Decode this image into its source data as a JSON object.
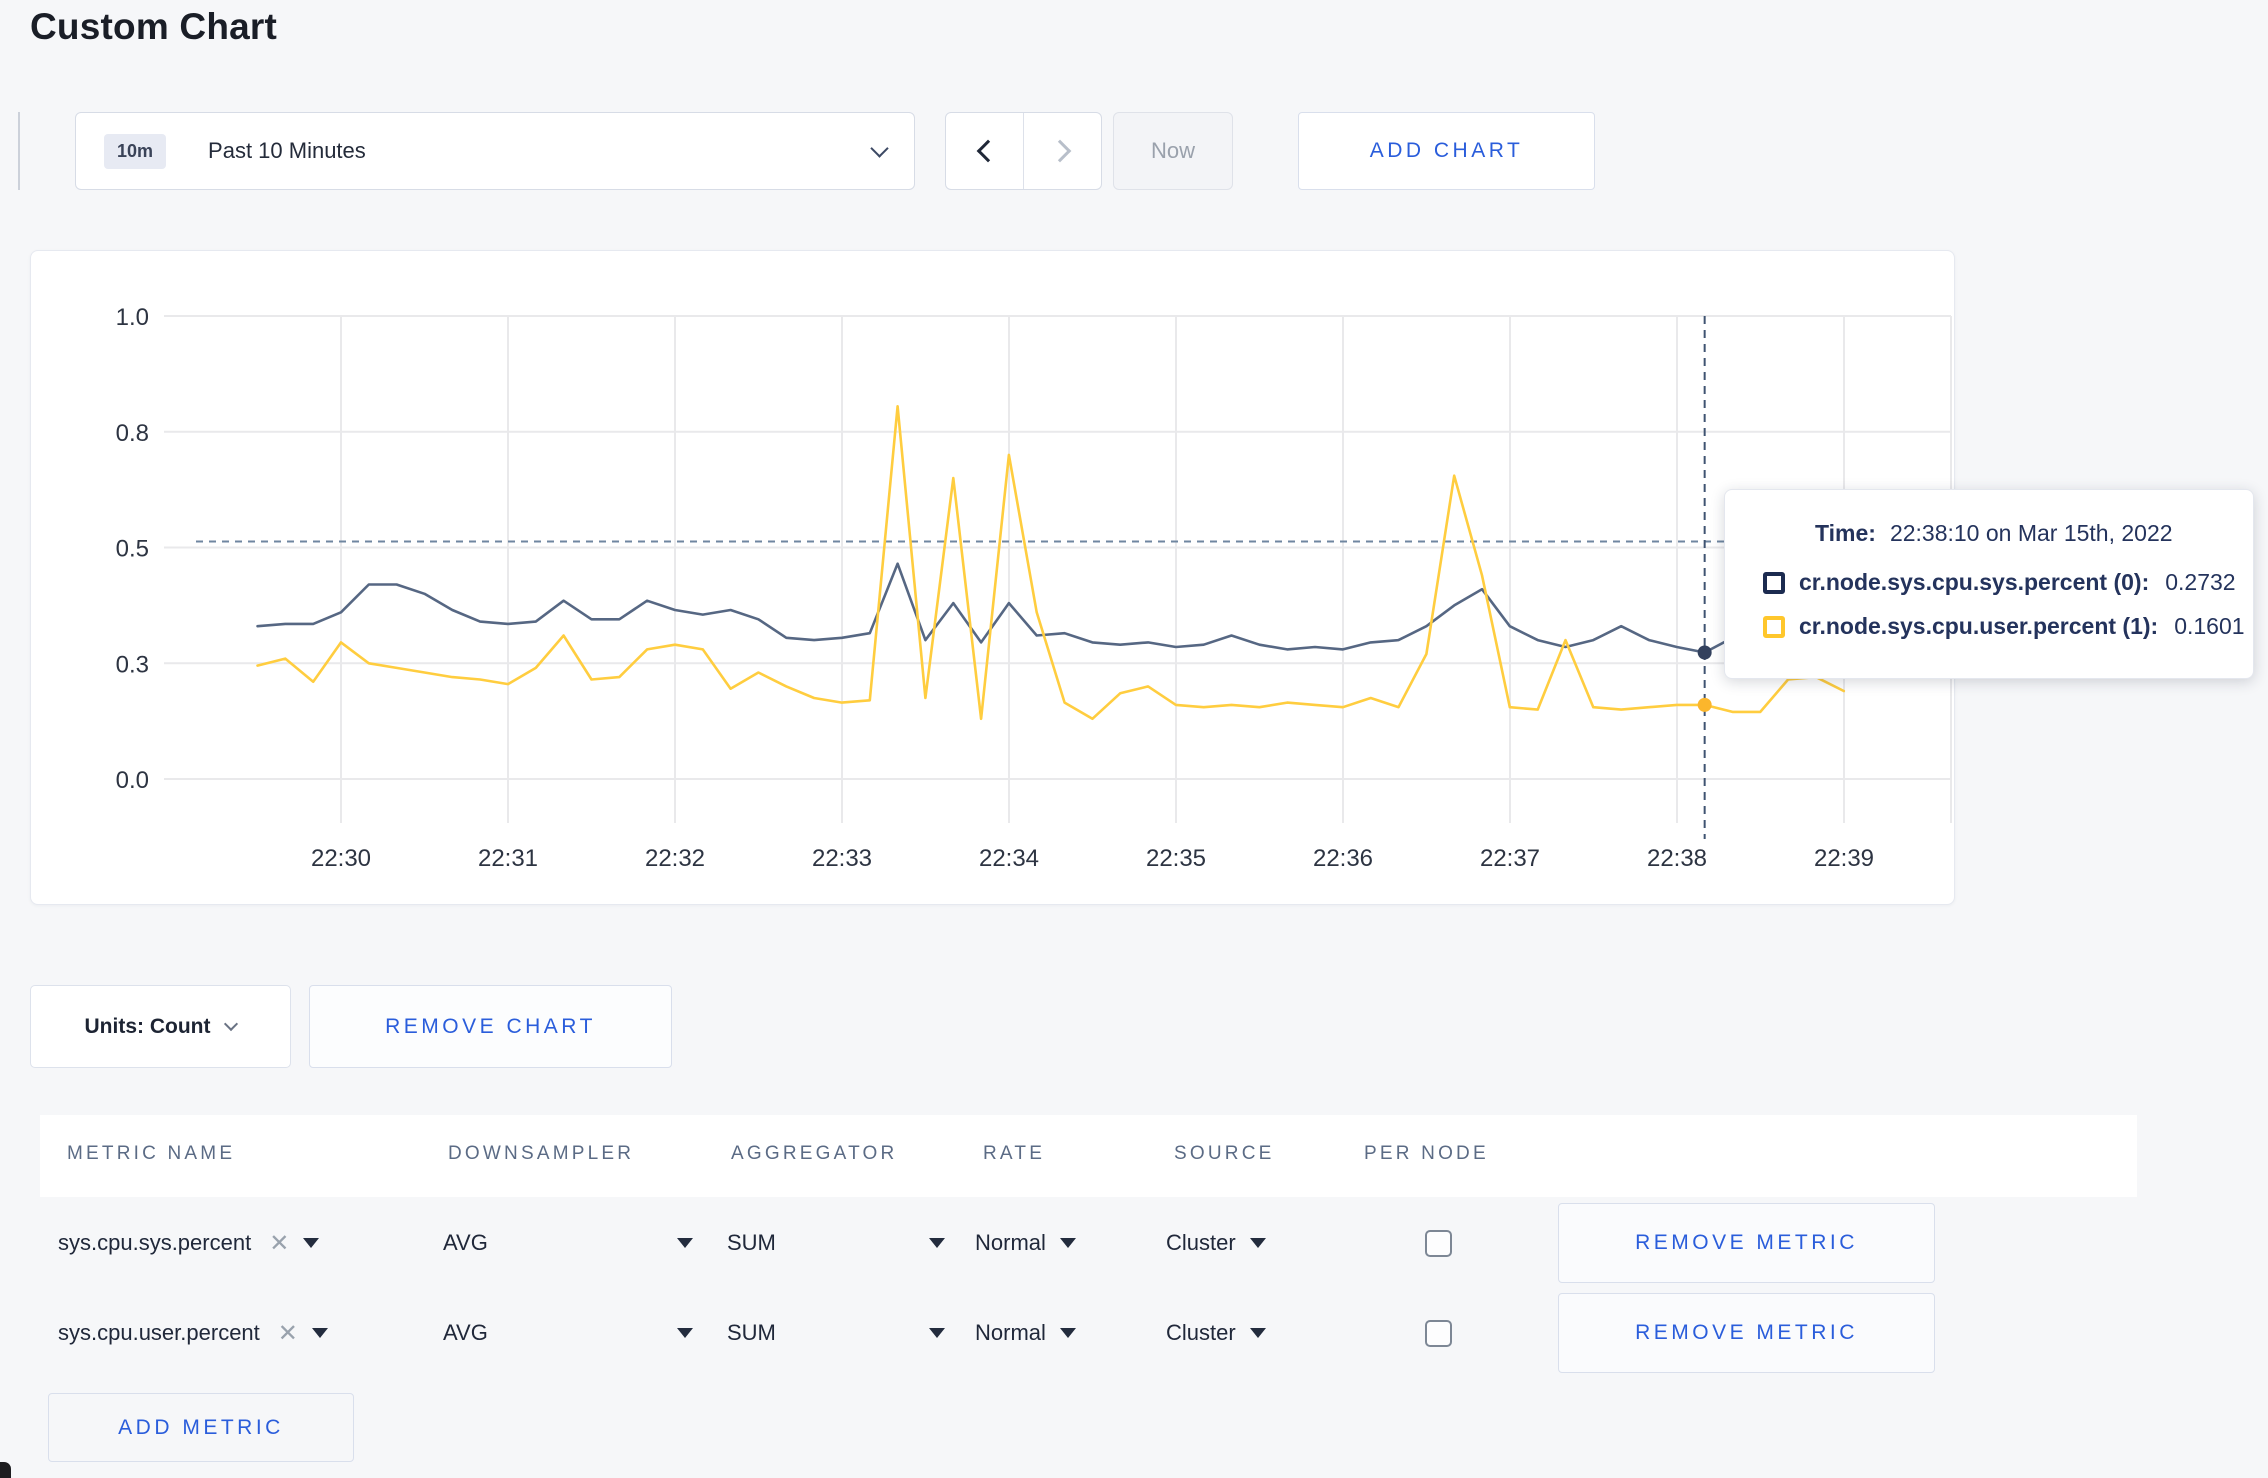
{
  "page": {
    "title": "Custom Chart"
  },
  "toolbar": {
    "time_scale": {
      "badge": "10m",
      "label": "Past 10 Minutes"
    },
    "now_label": "Now",
    "add_chart_label": "ADD CHART"
  },
  "chart_data": {
    "type": "line",
    "title": "",
    "xlabel": "",
    "ylabel": "",
    "ylim": [
      0,
      1
    ],
    "grid": true,
    "legend_position": "none",
    "y_ticks": [
      {
        "label": "1.0",
        "value": 1.0
      },
      {
        "label": "0.8",
        "value": 0.75
      },
      {
        "label": "0.5",
        "value": 0.5
      },
      {
        "label": "0.3",
        "value": 0.25
      },
      {
        "label": "0.0",
        "value": 0.0
      }
    ],
    "x_ticks": [
      "22:30",
      "22:31",
      "22:32",
      "22:33",
      "22:34",
      "22:35",
      "22:36",
      "22:37",
      "22:38",
      "22:39"
    ],
    "x_start": "22:29:30",
    "x_interval_seconds": 10,
    "threshold_line": {
      "value": 0.513,
      "style": "dashed"
    },
    "crosshair": {
      "time": "22:38:10",
      "x_index": 52,
      "sys_value": 0.2732,
      "user_value": 0.1601
    },
    "series": [
      {
        "name": "cr.node.sys.cpu.sys.percent (0)",
        "color": "#566783",
        "dot_color": "#33415e",
        "values": [
          0.33,
          0.335,
          0.335,
          0.36,
          0.42,
          0.42,
          0.4,
          0.365,
          0.34,
          0.335,
          0.34,
          0.385,
          0.345,
          0.345,
          0.385,
          0.365,
          0.355,
          0.365,
          0.345,
          0.305,
          0.3,
          0.305,
          0.315,
          0.465,
          0.3,
          0.38,
          0.295,
          0.38,
          0.31,
          0.315,
          0.295,
          0.29,
          0.295,
          0.285,
          0.29,
          0.31,
          0.29,
          0.28,
          0.285,
          0.28,
          0.295,
          0.3,
          0.33,
          0.375,
          0.41,
          0.33,
          0.3,
          0.285,
          0.3,
          0.33,
          0.3,
          0.285,
          0.2732,
          0.305,
          0.31,
          0.3,
          0.31,
          0.3
        ]
      },
      {
        "name": "cr.node.sys.cpu.user.percent (1)",
        "color": "#ffcd3f",
        "dot_color": "#fbb62c",
        "values": [
          0.245,
          0.26,
          0.21,
          0.295,
          0.25,
          0.24,
          0.23,
          0.22,
          0.215,
          0.205,
          0.24,
          0.31,
          0.215,
          0.22,
          0.28,
          0.29,
          0.28,
          0.195,
          0.23,
          0.2,
          0.175,
          0.165,
          0.17,
          0.805,
          0.175,
          0.65,
          0.13,
          0.7,
          0.36,
          0.165,
          0.13,
          0.185,
          0.2,
          0.16,
          0.155,
          0.16,
          0.155,
          0.165,
          0.16,
          0.155,
          0.175,
          0.155,
          0.27,
          0.655,
          0.44,
          0.155,
          0.15,
          0.3,
          0.155,
          0.15,
          0.155,
          0.16,
          0.1601,
          0.145,
          0.145,
          0.215,
          0.22,
          0.19
        ]
      }
    ]
  },
  "tooltip": {
    "time_label": "Time:",
    "time_value": "22:38:10 on Mar 15th, 2022",
    "rows": [
      {
        "name": "cr.node.sys.cpu.sys.percent (0):",
        "value": "0.2732",
        "swatch_color": "#1c2b50"
      },
      {
        "name": "cr.node.sys.cpu.user.percent (1):",
        "value": "0.1601",
        "swatch_color": "#ffc72c"
      }
    ]
  },
  "units_row": {
    "units_label": "Units: Count",
    "remove_chart_label": "REMOVE CHART"
  },
  "metrics_table": {
    "headers": [
      "METRIC NAME",
      "DOWNSAMPLER",
      "AGGREGATOR",
      "RATE",
      "SOURCE",
      "PER NODE"
    ],
    "rows": [
      {
        "metric": "sys.cpu.sys.percent",
        "downsampler": "AVG",
        "aggregator": "SUM",
        "rate": "Normal",
        "source": "Cluster",
        "per_node_checked": false,
        "remove_label": "REMOVE METRIC"
      },
      {
        "metric": "sys.cpu.user.percent",
        "downsampler": "AVG",
        "aggregator": "SUM",
        "rate": "Normal",
        "source": "Cluster",
        "per_node_checked": false,
        "remove_label": "REMOVE METRIC"
      }
    ],
    "add_metric_label": "ADD METRIC"
  },
  "colors": {
    "accent_blue": "#2a5ddb",
    "grid": "#e9e9eb",
    "axis_text": "#2d3442",
    "threshold": "#6f86a0",
    "crosshair": "#3f5371"
  }
}
